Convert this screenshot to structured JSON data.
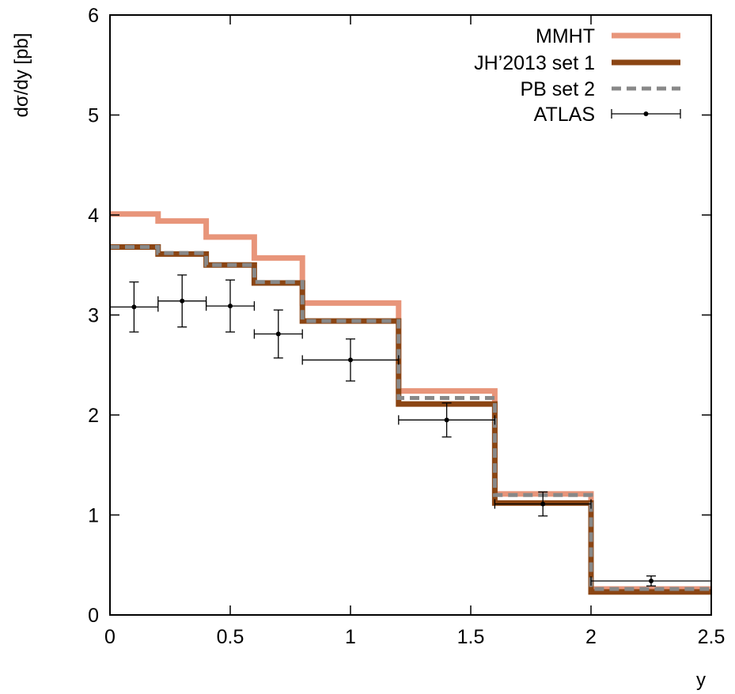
{
  "chart_data": {
    "type": "line",
    "title": "",
    "xlabel": "y",
    "ylabel": "dσ/dy [pb]",
    "xlim": [
      0,
      2.5
    ],
    "ylim": [
      0,
      6
    ],
    "grid": false,
    "legend_position": "top-right",
    "x_ticks": [
      0,
      0.5,
      1,
      1.5,
      2,
      2.5
    ],
    "x_tick_labels": [
      "0",
      "0.5",
      "1",
      "1.5",
      "2",
      "2.5"
    ],
    "y_ticks": [
      0,
      1,
      2,
      3,
      4,
      5,
      6
    ],
    "y_tick_labels": [
      "0",
      "1",
      "2",
      "3",
      "4",
      "5",
      "6"
    ],
    "bin_edges": [
      0,
      0.2,
      0.4,
      0.6,
      0.8,
      1.2,
      1.6,
      2.0,
      2.5
    ],
    "series": [
      {
        "name": "MMHT",
        "style": "step",
        "color": "#e8957a",
        "values": [
          4.01,
          3.94,
          3.78,
          3.57,
          3.12,
          2.24,
          1.21,
          0.26
        ]
      },
      {
        "name": "JH’2013 set 1",
        "style": "step",
        "color": "#8b4513",
        "values": [
          3.68,
          3.61,
          3.5,
          3.32,
          2.94,
          2.11,
          1.12,
          0.23
        ]
      },
      {
        "name": "PB set 2",
        "style": "step-dashed",
        "color": "#888888",
        "values": [
          3.68,
          3.62,
          3.5,
          3.33,
          2.94,
          2.17,
          1.2,
          0.26
        ]
      },
      {
        "name": "ATLAS",
        "style": "points-errorbars",
        "color": "#000000",
        "points": [
          {
            "x": 0.1,
            "y": 3.08,
            "xerr": 0.1,
            "yerr": 0.25
          },
          {
            "x": 0.3,
            "y": 3.14,
            "xerr": 0.1,
            "yerr": 0.26
          },
          {
            "x": 0.5,
            "y": 3.09,
            "xerr": 0.1,
            "yerr": 0.26
          },
          {
            "x": 0.7,
            "y": 2.81,
            "xerr": 0.1,
            "yerr": 0.24
          },
          {
            "x": 1.0,
            "y": 2.55,
            "xerr": 0.2,
            "yerr": 0.21
          },
          {
            "x": 1.4,
            "y": 1.95,
            "xerr": 0.2,
            "yerr": 0.17
          },
          {
            "x": 1.8,
            "y": 1.11,
            "xerr": 0.2,
            "yerr": 0.12
          },
          {
            "x": 2.25,
            "y": 0.34,
            "xerr": 0.25,
            "yerr": 0.05
          }
        ]
      }
    ]
  }
}
